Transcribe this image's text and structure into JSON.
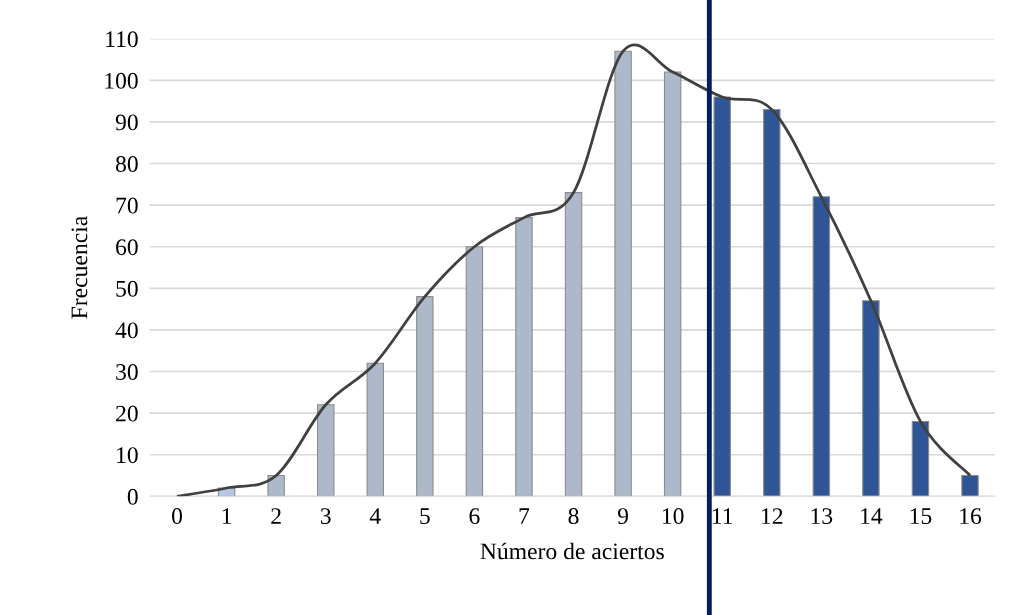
{
  "chart_data": {
    "type": "bar",
    "xlabel": "Número de aciertos",
    "ylabel": "Frecuencia",
    "categories": [
      "0",
      "1",
      "2",
      "3",
      "4",
      "5",
      "6",
      "7",
      "8",
      "9",
      "10",
      "11",
      "12",
      "13",
      "14",
      "15",
      "16"
    ],
    "series": [
      {
        "values": [
          0,
          2,
          5,
          22,
          32,
          48,
          60,
          67,
          73,
          107,
          102,
          96,
          93,
          72,
          47,
          18,
          5
        ],
        "colors": [
          "#adb9ca",
          "#b4c7e7",
          "#adb9ca",
          "#adb9ca",
          "#adb9ca",
          "#adb9ca",
          "#adb9ca",
          "#adb9ca",
          "#adb9ca",
          "#adb9ca",
          "#adb9ca",
          "#2f5597",
          "#2f5597",
          "#2f5597",
          "#2f5597",
          "#2f5597",
          "#2f5597"
        ]
      },
      {
        "type": "line",
        "color": "#404040",
        "values": [
          0,
          2,
          5,
          22,
          32,
          48,
          60,
          67,
          73,
          107,
          102,
          96,
          93,
          72,
          47,
          18,
          5
        ]
      }
    ],
    "ylim": [
      0,
      110
    ],
    "yticks": [
      0,
      10,
      20,
      30,
      40,
      50,
      60,
      70,
      80,
      90,
      100,
      110
    ],
    "ref_lines": [
      {
        "axis": "x",
        "value": "11",
        "color": "#002060"
      }
    ],
    "grid": "y",
    "legend": false
  }
}
